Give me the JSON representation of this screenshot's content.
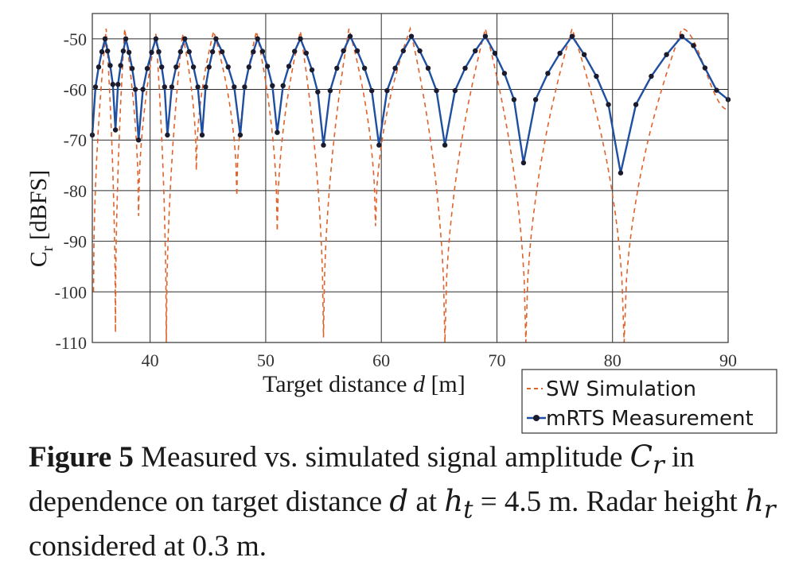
{
  "chart_data": {
    "type": "line",
    "xlabel_prefix": "Target distance ",
    "xlabel_var": "d",
    "xlabel_unit": " [m]",
    "ylabel_base": "C",
    "ylabel_sub": "r",
    "ylabel_unit": " [dBFS]",
    "xlim": [
      35,
      90
    ],
    "ylim": [
      -110,
      -45
    ],
    "xticks": [
      40,
      50,
      60,
      70,
      80,
      90
    ],
    "yticks": [
      -50,
      -60,
      -70,
      -80,
      -90,
      -100,
      -110
    ],
    "grid": true,
    "legend_position": "below-right",
    "series": [
      {
        "name": "SW Simulation",
        "style": "dashed",
        "color": "#e0622b",
        "minima": [
          {
            "x": 35.1,
            "y": -100
          },
          {
            "x": 37.0,
            "y": -108
          },
          {
            "x": 39.0,
            "y": -85
          },
          {
            "x": 41.4,
            "y": -110
          },
          {
            "x": 44.0,
            "y": -76
          },
          {
            "x": 47.5,
            "y": -81
          },
          {
            "x": 51.0,
            "y": -88
          },
          {
            "x": 55.0,
            "y": -109
          },
          {
            "x": 59.5,
            "y": -87
          },
          {
            "x": 65.5,
            "y": -110
          },
          {
            "x": 72.5,
            "y": -110
          },
          {
            "x": 81.0,
            "y": -110
          }
        ],
        "maxima": [
          {
            "x": 36.2,
            "y": -48
          },
          {
            "x": 37.8,
            "y": -48
          },
          {
            "x": 40.5,
            "y": -49
          },
          {
            "x": 42.8,
            "y": -49
          },
          {
            "x": 45.5,
            "y": -48.5
          },
          {
            "x": 49.2,
            "y": -48.5
          },
          {
            "x": 53.0,
            "y": -48.5
          },
          {
            "x": 57.2,
            "y": -48
          },
          {
            "x": 62.5,
            "y": -48
          },
          {
            "x": 69.0,
            "y": -48
          },
          {
            "x": 76.5,
            "y": -48
          },
          {
            "x": 86.0,
            "y": -48
          },
          {
            "x": 90.0,
            "y": -64
          }
        ]
      },
      {
        "name": "mRTS Measurement",
        "style": "solid-marker",
        "color": "#1f4fa0",
        "marker_color": "#1b1b2e",
        "minima": [
          {
            "x": 35.0,
            "y": -69
          },
          {
            "x": 37.0,
            "y": -68
          },
          {
            "x": 39.0,
            "y": -70
          },
          {
            "x": 41.5,
            "y": -69
          },
          {
            "x": 44.5,
            "y": -69
          },
          {
            "x": 47.8,
            "y": -69
          },
          {
            "x": 51.0,
            "y": -68.5
          },
          {
            "x": 55.0,
            "y": -71
          },
          {
            "x": 59.8,
            "y": -71
          },
          {
            "x": 65.5,
            "y": -71
          },
          {
            "x": 72.3,
            "y": -74.5
          },
          {
            "x": 80.7,
            "y": -76.5
          }
        ],
        "maxima": [
          {
            "x": 36.1,
            "y": -50
          },
          {
            "x": 37.9,
            "y": -50
          },
          {
            "x": 40.5,
            "y": -50
          },
          {
            "x": 43.0,
            "y": -50
          },
          {
            "x": 45.7,
            "y": -50
          },
          {
            "x": 49.3,
            "y": -50
          },
          {
            "x": 53.0,
            "y": -50
          },
          {
            "x": 57.3,
            "y": -49.5
          },
          {
            "x": 62.6,
            "y": -49.5
          },
          {
            "x": 69.0,
            "y": -49.5
          },
          {
            "x": 76.5,
            "y": -49.5
          },
          {
            "x": 86.0,
            "y": -49.5
          },
          {
            "x": 90.0,
            "y": -62
          }
        ]
      }
    ]
  },
  "caption": {
    "label": "Figure 5",
    "text_1": " Measured vs. simulated signal amplitude ",
    "var_c": "C",
    "var_c_sub": "r",
    "text_2": " in dependence on target distance ",
    "var_d": "d",
    "text_3": " at ",
    "var_h": "h",
    "var_h_sub": "t",
    "text_4": " = 4.5 m. Radar height ",
    "var_hr": "h",
    "var_hr_sub": "r",
    "text_5": " considered at 0.3 m."
  }
}
